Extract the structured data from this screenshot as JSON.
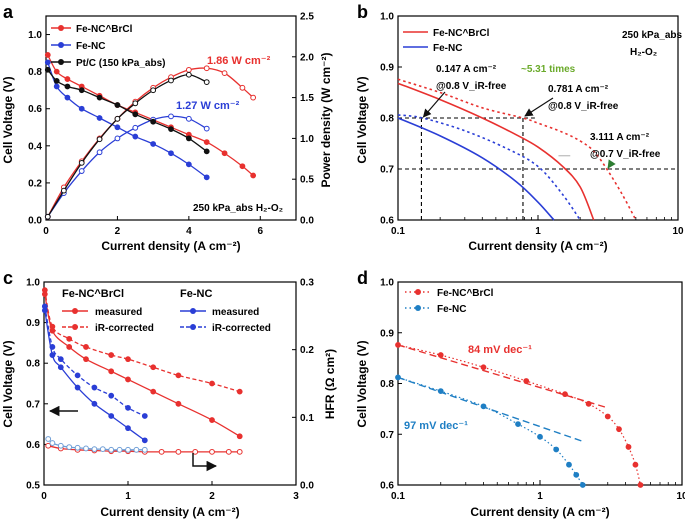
{
  "chart_data": [
    {
      "panel": "a",
      "type": "line",
      "title": "",
      "xlabel": "Current density (A cm⁻²)",
      "ylabel": "Cell Voltage (V)",
      "y2label": "Power density (W cm⁻²)",
      "xlim": [
        0,
        7
      ],
      "ylim": [
        0,
        1.1
      ],
      "y2lim": [
        0,
        2.5
      ],
      "xticks": [
        "0",
        "2",
        "4",
        "6"
      ],
      "yticks": [
        "0.0",
        "0.2",
        "0.4",
        "0.6",
        "0.8",
        "1.0"
      ],
      "y2ticks": [
        "0.0",
        "0.5",
        "1.0",
        "1.5",
        "2.0",
        "2.5"
      ],
      "legend": [
        "Fe-NC^BrCl",
        "Fe-NC",
        "Pt/C (150 kPa_abs)"
      ],
      "annotations": {
        "fe_nc_brcl_peak": "1.86 W cm⁻²",
        "fe_nc_peak": "1.27 W cm⁻²",
        "condition": "250 kPa_abs  H₂-O₂"
      },
      "series": [
        {
          "name": "Fe-NC^BrCl voltage",
          "axis": "left",
          "color": "#e8312f",
          "x": [
            0.05,
            0.3,
            0.6,
            1.0,
            1.5,
            2.0,
            2.5,
            3.0,
            3.5,
            4.0,
            4.5,
            5.0,
            5.5,
            5.8
          ],
          "y": [
            0.89,
            0.8,
            0.76,
            0.72,
            0.67,
            0.62,
            0.58,
            0.54,
            0.5,
            0.46,
            0.42,
            0.36,
            0.29,
            0.24
          ]
        },
        {
          "name": "Fe-NC^BrCl power",
          "axis": "right",
          "color": "#e8312f",
          "x": [
            0.05,
            0.5,
            1.0,
            1.5,
            2.0,
            2.5,
            3.0,
            3.5,
            4.0,
            4.5,
            5.0,
            5.5,
            5.8
          ],
          "y": [
            0.04,
            0.4,
            0.72,
            1.0,
            1.24,
            1.45,
            1.62,
            1.75,
            1.84,
            1.86,
            1.8,
            1.62,
            1.5
          ]
        },
        {
          "name": "Fe-NC voltage",
          "axis": "left",
          "color": "#2a3ed6",
          "x": [
            0.05,
            0.3,
            0.6,
            1.0,
            1.5,
            2.0,
            2.5,
            3.0,
            3.5,
            4.0,
            4.5
          ],
          "y": [
            0.85,
            0.72,
            0.66,
            0.6,
            0.55,
            0.5,
            0.45,
            0.41,
            0.36,
            0.3,
            0.23
          ]
        },
        {
          "name": "Fe-NC power",
          "axis": "right",
          "color": "#2a3ed6",
          "x": [
            0.05,
            0.5,
            1.0,
            1.5,
            2.0,
            2.5,
            3.0,
            3.5,
            4.0,
            4.5
          ],
          "y": [
            0.04,
            0.33,
            0.6,
            0.83,
            1.0,
            1.13,
            1.23,
            1.27,
            1.24,
            1.12
          ]
        },
        {
          "name": "Pt/C voltage",
          "axis": "left",
          "color": "#111111",
          "x": [
            0.05,
            0.3,
            0.6,
            1.0,
            1.5,
            2.0,
            2.5,
            3.0,
            3.5,
            4.0,
            4.5
          ],
          "y": [
            0.81,
            0.75,
            0.72,
            0.7,
            0.66,
            0.62,
            0.57,
            0.53,
            0.49,
            0.44,
            0.37
          ]
        },
        {
          "name": "Pt/C power",
          "axis": "right",
          "color": "#111111",
          "x": [
            0.05,
            0.5,
            1.0,
            1.5,
            2.0,
            2.5,
            3.0,
            3.5,
            4.0,
            4.5
          ],
          "y": [
            0.04,
            0.36,
            0.7,
            0.99,
            1.24,
            1.43,
            1.59,
            1.71,
            1.78,
            1.69
          ]
        }
      ]
    },
    {
      "panel": "b",
      "type": "line",
      "xscale": "log",
      "xlabel": "Current density (A cm⁻²)",
      "ylabel": "Cell Voltage (V)",
      "xlim": [
        0.1,
        10
      ],
      "ylim": [
        0.6,
        1.0
      ],
      "xticks": [
        "0.1",
        "1",
        "10"
      ],
      "yticks": [
        "0.6",
        "0.7",
        "0.8",
        "0.9",
        "1.0"
      ],
      "legend": [
        "Fe-NC^BrCl",
        "Fe-NC"
      ],
      "annotations": {
        "condition_pressure": "250 kPa_abs",
        "condition_gas": "H₂-O₂",
        "a1_line1": "0.147 A cm⁻²",
        "a1_line2": "@0.8 V_iR-free",
        "a2_line1": "0.781 A cm⁻²",
        "a2_line2": "@0.8 V_iR-free",
        "a3_line1": "3.111 A cm⁻²",
        "a3_line2": "@0.7 V_iR-free",
        "ratio": "~5.31 times"
      },
      "ratio_color": "#6aaa2a",
      "series": [
        {
          "name": "Fe-NC^BrCl measured",
          "style": "solid",
          "color": "#e8312f",
          "x": [
            0.1,
            0.2,
            0.4,
            0.7,
            1.0,
            1.5,
            2.0,
            2.5
          ],
          "y": [
            0.868,
            0.836,
            0.8,
            0.767,
            0.743,
            0.705,
            0.665,
            0.6
          ]
        },
        {
          "name": "Fe-NC^BrCl iR-corrected",
          "style": "dotted",
          "color": "#e8312f",
          "x": [
            0.1,
            0.2,
            0.4,
            0.78,
            1.0,
            1.5,
            2.0,
            2.5,
            3.1,
            4.0,
            5.0
          ],
          "y": [
            0.876,
            0.85,
            0.82,
            0.8,
            0.79,
            0.772,
            0.755,
            0.735,
            0.7,
            0.65,
            0.6
          ]
        },
        {
          "name": "Fe-NC measured",
          "style": "solid",
          "color": "#2a3ed6",
          "x": [
            0.1,
            0.2,
            0.4,
            0.7,
            1.0,
            1.3
          ],
          "y": [
            0.8,
            0.765,
            0.722,
            0.675,
            0.635,
            0.6
          ]
        },
        {
          "name": "Fe-NC iR-corrected",
          "style": "dotted",
          "color": "#2a3ed6",
          "x": [
            0.1,
            0.15,
            0.3,
            0.6,
            1.0,
            1.5,
            2.0
          ],
          "y": [
            0.806,
            0.8,
            0.775,
            0.74,
            0.705,
            0.65,
            0.6
          ]
        }
      ]
    },
    {
      "panel": "c",
      "type": "line",
      "xlabel": "Current density (A cm⁻²)",
      "ylabel": "Cell Voltage (V)",
      "y2label": "HFR (Ω cm²)",
      "xlim": [
        0,
        3
      ],
      "ylim": [
        0.5,
        1.0
      ],
      "y2lim": [
        0,
        0.3
      ],
      "xticks": [
        "0",
        "1",
        "2",
        "3"
      ],
      "yticks": [
        "0.5",
        "0.6",
        "0.7",
        "0.8",
        "0.9",
        "1.0"
      ],
      "y2ticks": [
        "0.0",
        "0.1",
        "0.2",
        "0.3"
      ],
      "legend_groups": [
        {
          "title": "Fe-NC^BrCl",
          "items": [
            "measured",
            "iR-corrected"
          ]
        },
        {
          "title": "Fe-NC",
          "items": [
            "measured",
            "iR-corrected"
          ]
        }
      ],
      "series": [
        {
          "name": "Fe-NC^BrCl measured",
          "style": "solid",
          "color": "#e8312f",
          "x": [
            0.01,
            0.1,
            0.3,
            0.5,
            0.8,
            1.0,
            1.3,
            1.6,
            2.0,
            2.33
          ],
          "y": [
            0.97,
            0.88,
            0.84,
            0.81,
            0.78,
            0.76,
            0.73,
            0.7,
            0.66,
            0.62
          ]
        },
        {
          "name": "Fe-NC^BrCl iR-corrected",
          "style": "dashed",
          "color": "#e8312f",
          "x": [
            0.01,
            0.1,
            0.3,
            0.5,
            0.8,
            1.0,
            1.3,
            1.6,
            2.0,
            2.33
          ],
          "y": [
            0.98,
            0.89,
            0.86,
            0.84,
            0.82,
            0.81,
            0.79,
            0.77,
            0.75,
            0.73
          ]
        },
        {
          "name": "Fe-NC measured",
          "style": "solid",
          "color": "#2a3ed6",
          "x": [
            0.01,
            0.1,
            0.2,
            0.4,
            0.6,
            0.8,
            1.0,
            1.2
          ],
          "y": [
            0.93,
            0.82,
            0.79,
            0.74,
            0.7,
            0.67,
            0.64,
            0.61
          ]
        },
        {
          "name": "Fe-NC iR-corrected",
          "style": "dashed",
          "color": "#2a3ed6",
          "x": [
            0.01,
            0.1,
            0.2,
            0.4,
            0.6,
            0.8,
            1.0,
            1.2
          ],
          "y": [
            0.94,
            0.84,
            0.81,
            0.77,
            0.74,
            0.72,
            0.69,
            0.67
          ]
        },
        {
          "name": "Fe-NC^BrCl HFR",
          "axis": "right",
          "style": "hollow",
          "color": "#e8312f",
          "x": [
            0.05,
            0.2,
            0.4,
            0.6,
            0.8,
            1.0,
            1.2,
            1.4,
            1.6,
            1.8,
            2.0,
            2.2,
            2.33
          ],
          "y": [
            0.058,
            0.054,
            0.052,
            0.051,
            0.05,
            0.05,
            0.049,
            0.049,
            0.049,
            0.049,
            0.049,
            0.049,
            0.049
          ]
        },
        {
          "name": "Fe-NC HFR",
          "axis": "right",
          "style": "hollow",
          "color": "#6f9ed6",
          "x": [
            0.05,
            0.1,
            0.2,
            0.3,
            0.4,
            0.5,
            0.6,
            0.7,
            0.8,
            0.9,
            1.0,
            1.1,
            1.2
          ],
          "y": [
            0.068,
            0.062,
            0.058,
            0.056,
            0.055,
            0.054,
            0.053,
            0.053,
            0.052,
            0.052,
            0.052,
            0.052,
            0.052
          ]
        }
      ]
    },
    {
      "panel": "d",
      "type": "line",
      "xscale": "log",
      "xlabel": "Current density (A cm⁻²)",
      "ylabel": "Cell Voltage (V)",
      "xlim": [
        0.1,
        10
      ],
      "ylim": [
        0.6,
        1.0
      ],
      "xticks": [
        "0.1",
        "1",
        "10"
      ],
      "yticks": [
        "0.6",
        "0.7",
        "0.8",
        "0.9",
        "1.0"
      ],
      "legend": [
        "Fe-NC^BrCl",
        "Fe-NC"
      ],
      "annotations": {
        "tafel_brcl": "84 mV dec⁻¹",
        "tafel_fenc": "97 mV dec⁻¹"
      },
      "series": [
        {
          "name": "Fe-NC^BrCl",
          "color": "#e8312f",
          "x": [
            0.1,
            0.2,
            0.4,
            0.8,
            1.5,
            2.2,
            3.0,
            3.6,
            4.2,
            4.7,
            5.1
          ],
          "y": [
            0.876,
            0.856,
            0.832,
            0.805,
            0.779,
            0.76,
            0.735,
            0.71,
            0.675,
            0.64,
            0.6
          ]
        },
        {
          "name": "Fe-NC^BrCl Tafel fit",
          "style": "dashed",
          "color": "#e8312f",
          "x": [
            0.1,
            3.0
          ],
          "y": [
            0.876,
            0.752
          ]
        },
        {
          "name": "Fe-NC",
          "color": "#1f7fc4",
          "x": [
            0.1,
            0.2,
            0.4,
            0.7,
            1.0,
            1.3,
            1.6,
            1.8,
            2.0
          ],
          "y": [
            0.812,
            0.785,
            0.755,
            0.72,
            0.695,
            0.67,
            0.64,
            0.62,
            0.6
          ]
        },
        {
          "name": "Fe-NC Tafel fit",
          "style": "dashed",
          "color": "#1f7fc4",
          "x": [
            0.1,
            2.0
          ],
          "y": [
            0.812,
            0.686
          ]
        }
      ]
    }
  ]
}
